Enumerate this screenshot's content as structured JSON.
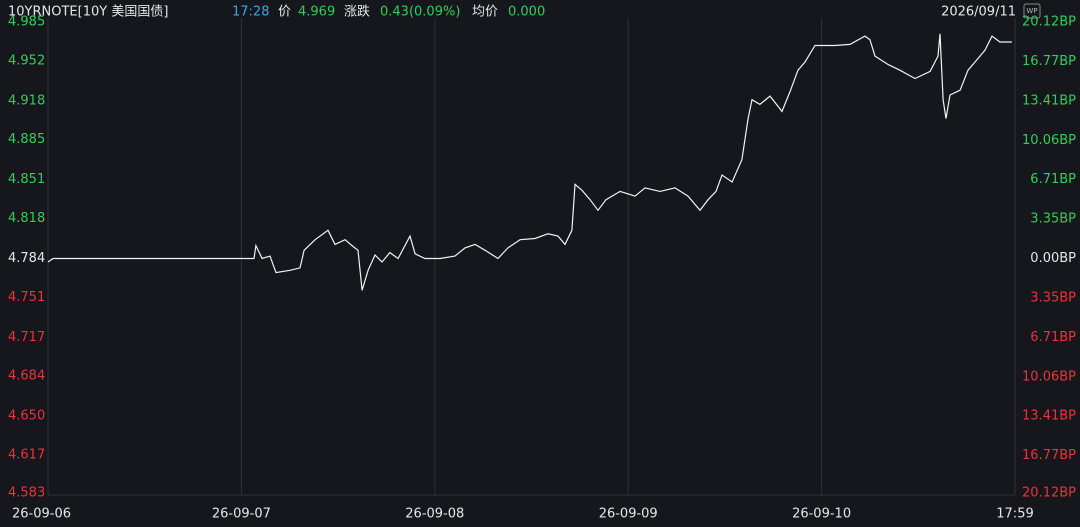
{
  "chart_data": {
    "type": "line",
    "header": {
      "symbol": "10YRNOTE[10Y 美国国债]",
      "time": "17:28",
      "price_label": "价",
      "price": "4.969",
      "change_label": "涨跌",
      "change": "0.43(0.09%)",
      "avg_label": "均价",
      "avg": "0.000",
      "date": "2026/09/11",
      "badge": "WP"
    },
    "xlim": [
      0,
      5
    ],
    "xticks": [
      {
        "value": 0,
        "label": "26-09-06"
      },
      {
        "value": 1,
        "label": "26-09-07"
      },
      {
        "value": 2,
        "label": "26-09-08"
      },
      {
        "value": 3,
        "label": "26-09-09"
      },
      {
        "value": 4,
        "label": "26-09-10"
      },
      {
        "value": 5,
        "label": "17:59"
      }
    ],
    "ylim": [
      4.583,
      4.985
    ],
    "yticks": [
      4.985,
      4.952,
      4.918,
      4.885,
      4.851,
      4.818,
      4.784,
      4.751,
      4.717,
      4.684,
      {
        "value": 4.65,
        "label": "4.650"
      },
      4.617,
      4.583
    ],
    "y2lim": [
      -20.12,
      20.12
    ],
    "y2ticks": [
      {
        "value": 20.12,
        "label": "20.12BP"
      },
      {
        "value": 16.77,
        "label": "16.77BP"
      },
      {
        "value": 13.41,
        "label": "13.41BP"
      },
      {
        "value": 10.06,
        "label": "10.06BP"
      },
      {
        "value": 6.71,
        "label": "6.71BP"
      },
      {
        "value": 3.35,
        "label": "3.35BP"
      },
      {
        "value": 0,
        "label": "0.00BP"
      },
      {
        "value": -3.35,
        "label": "3.35BP"
      },
      {
        "value": -6.71,
        "label": "6.71BP"
      },
      {
        "value": -10.06,
        "label": "10.06BP"
      },
      {
        "value": -13.41,
        "label": "13.41BP"
      },
      {
        "value": -16.77,
        "label": "16.77BP"
      },
      {
        "value": -20.12,
        "label": "20.12BP"
      }
    ],
    "base": 4.784,
    "up_color": "#2fcf5a",
    "down_color": "#f0303a",
    "flat_color": "#e6e6e6",
    "grid": true,
    "series": [
      {
        "name": "10YRNOTE",
        "color": "#f2f2f2",
        "x": [
          0,
          0.026,
          1.065,
          1.075,
          1.107,
          1.148,
          1.179,
          1.251,
          1.303,
          1.324,
          1.381,
          1.448,
          1.484,
          1.536,
          1.572,
          1.603,
          1.624,
          1.655,
          1.691,
          1.727,
          1.768,
          1.81,
          1.872,
          1.898,
          1.949,
          2.027,
          2.104,
          2.156,
          2.208,
          2.26,
          2.327,
          2.378,
          2.441,
          2.518,
          2.585,
          2.637,
          2.673,
          2.709,
          2.725,
          2.761,
          2.803,
          2.844,
          2.885,
          2.958,
          3.035,
          3.087,
          3.164,
          3.242,
          3.309,
          3.371,
          3.413,
          3.454,
          3.485,
          3.537,
          3.588,
          3.62,
          3.64,
          3.681,
          3.733,
          3.795,
          3.837,
          3.878,
          3.914,
          3.966,
          4.018,
          4.069,
          4.147,
          4.224,
          4.25,
          4.276,
          4.343,
          4.405,
          4.483,
          4.561,
          4.602,
          4.612,
          4.628,
          4.643,
          4.664,
          4.716,
          4.757,
          4.793,
          4.845,
          4.881,
          4.922,
          4.984
        ],
        "values": [
          4.781,
          4.784,
          4.784,
          4.795,
          4.784,
          4.786,
          4.772,
          4.774,
          4.776,
          4.791,
          4.8,
          4.808,
          4.796,
          4.8,
          4.795,
          4.791,
          4.757,
          4.774,
          4.787,
          4.781,
          4.789,
          4.784,
          4.803,
          4.788,
          4.784,
          4.784,
          4.786,
          4.793,
          4.796,
          4.791,
          4.784,
          4.793,
          4.8,
          4.801,
          4.805,
          4.803,
          4.796,
          4.808,
          4.847,
          4.842,
          4.834,
          4.825,
          4.834,
          4.841,
          4.837,
          4.844,
          4.841,
          4.844,
          4.837,
          4.825,
          4.834,
          4.841,
          4.855,
          4.849,
          4.868,
          4.903,
          4.919,
          4.915,
          4.922,
          4.909,
          4.926,
          4.944,
          4.951,
          4.965,
          4.965,
          4.965,
          4.966,
          4.973,
          4.97,
          4.956,
          4.949,
          4.944,
          4.937,
          4.943,
          4.956,
          4.975,
          4.919,
          4.903,
          4.923,
          4.927,
          4.944,
          4.951,
          4.961,
          4.973,
          4.968,
          4.968
        ]
      }
    ]
  }
}
